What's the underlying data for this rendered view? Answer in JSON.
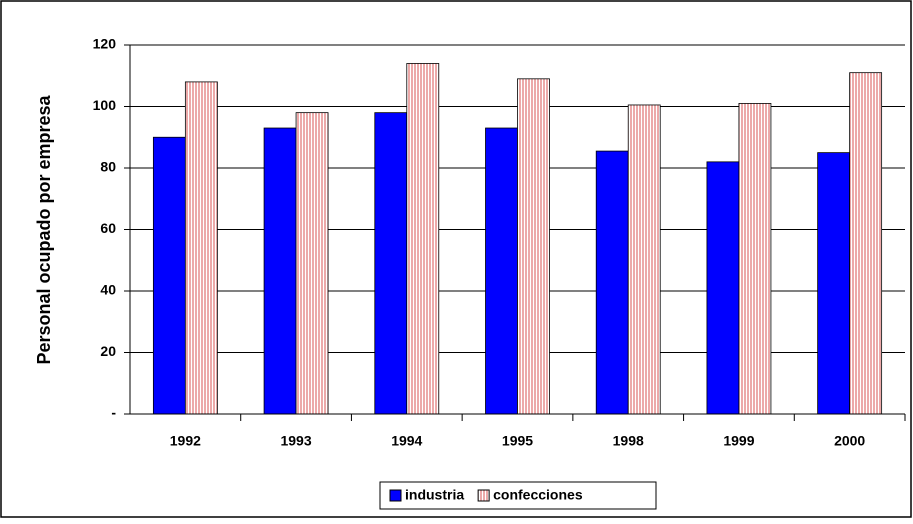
{
  "chart_data": {
    "type": "bar",
    "y_label": "Personal ocupado por empresa",
    "categories": [
      "1992",
      "1993",
      "1994",
      "1995",
      "1998",
      "1999",
      "2000"
    ],
    "series": [
      {
        "name": "industria",
        "color": "#0000ff",
        "values": [
          90,
          93,
          98,
          93,
          85.5,
          82,
          85
        ]
      },
      {
        "name": "confecciones",
        "color": "#e07070",
        "values": [
          108,
          98,
          114,
          109,
          100.5,
          101,
          111
        ]
      }
    ],
    "ylim": [
      0,
      120
    ],
    "yticks": [
      {
        "value": 0,
        "label": "-"
      },
      20,
      40,
      60,
      80,
      100,
      120
    ],
    "grid": true,
    "legend": "bottom"
  }
}
